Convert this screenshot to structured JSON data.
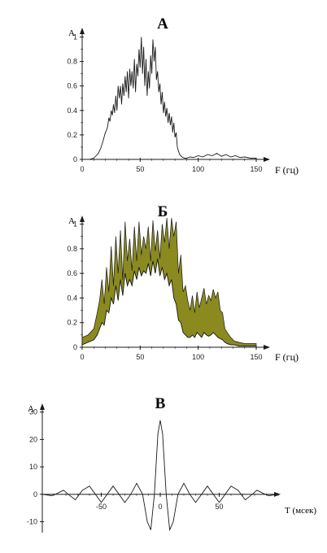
{
  "colors": {
    "ink": "#1a1a1a",
    "spectrum_fill": "#8a8a1f",
    "background": "#ffffff"
  },
  "chart_data": [
    {
      "type": "line",
      "title": "А",
      "ylabel": "А",
      "xlabel": "F (гц)",
      "xlim": [
        0,
        150
      ],
      "ylim": [
        0,
        1.05
      ],
      "xticks": [
        "0",
        "50",
        "100",
        "150"
      ],
      "yticks": [
        "0",
        "0.2",
        "0.4",
        "0.6",
        "0.8",
        "1"
      ],
      "series": [
        {
          "x": [
            0,
            6,
            10,
            12,
            14,
            16,
            18,
            20,
            21,
            22,
            23,
            24,
            25,
            26,
            27,
            28,
            29,
            30,
            31,
            32,
            33,
            34,
            35,
            36,
            37,
            38,
            39,
            40,
            41,
            42,
            43,
            44,
            45,
            46,
            47,
            48,
            49,
            50,
            51,
            52,
            53,
            54,
            55,
            56,
            57,
            58,
            59,
            60,
            61,
            62,
            63,
            64,
            65,
            66,
            67,
            68,
            69,
            70,
            71,
            72,
            73,
            74,
            75,
            76,
            77,
            78,
            79,
            80,
            81,
            82,
            84,
            86,
            88,
            90,
            93,
            96,
            100,
            104,
            108,
            112,
            116,
            120,
            124,
            128,
            132,
            136,
            140,
            145,
            150
          ],
          "y": [
            0,
            0,
            0.01,
            0.03,
            0.05,
            0.09,
            0.15,
            0.22,
            0.24,
            0.27,
            0.34,
            0.31,
            0.4,
            0.36,
            0.45,
            0.38,
            0.52,
            0.4,
            0.6,
            0.5,
            0.6,
            0.45,
            0.62,
            0.52,
            0.68,
            0.55,
            0.72,
            0.5,
            0.74,
            0.6,
            0.72,
            0.58,
            0.82,
            0.55,
            0.78,
            0.68,
            0.9,
            0.75,
            1.0,
            0.7,
            0.92,
            0.6,
            0.82,
            0.52,
            0.72,
            0.58,
            0.85,
            0.7,
            0.98,
            0.8,
            0.92,
            0.65,
            0.72,
            0.55,
            0.62,
            0.45,
            0.55,
            0.38,
            0.47,
            0.35,
            0.42,
            0.3,
            0.38,
            0.28,
            0.35,
            0.22,
            0.3,
            0.18,
            0.22,
            0.1,
            0.04,
            0.02,
            0.01,
            0.01,
            0.02,
            0.015,
            0.03,
            0.02,
            0.04,
            0.03,
            0.05,
            0.025,
            0.04,
            0.02,
            0.03,
            0.015,
            0.02,
            0.01,
            0.01
          ]
        }
      ]
    },
    {
      "type": "area",
      "title": "Б",
      "ylabel": "А",
      "xlabel": "F (гц)",
      "xlim": [
        0,
        150
      ],
      "ylim": [
        0,
        1.05
      ],
      "xticks": [
        "0",
        "50",
        "100",
        "150"
      ],
      "yticks": [
        "0",
        "0.2",
        "0.4",
        "0.6",
        "0.8",
        "1"
      ],
      "series": [
        {
          "x": [
            0,
            5,
            10,
            13,
            15,
            17,
            19,
            21,
            23,
            25,
            27,
            29,
            31,
            33,
            35,
            37,
            39,
            41,
            43,
            45,
            47,
            49,
            51,
            53,
            55,
            57,
            59,
            61,
            63,
            65,
            67,
            69,
            71,
            73,
            75,
            77,
            79,
            81,
            83,
            85,
            87,
            89,
            91,
            93,
            95,
            97,
            99,
            101,
            103,
            105,
            107,
            109,
            111,
            113,
            115,
            117,
            119,
            121,
            123,
            125,
            128,
            131,
            135,
            140,
            150
          ],
          "upper": [
            0.08,
            0.1,
            0.15,
            0.28,
            0.38,
            0.55,
            0.35,
            0.65,
            0.45,
            0.82,
            0.5,
            0.9,
            0.6,
            0.95,
            0.55,
            1.02,
            0.7,
            0.88,
            0.62,
            0.98,
            0.7,
            1.02,
            0.75,
            0.9,
            0.8,
            0.98,
            0.7,
            1.03,
            0.78,
            0.95,
            0.72,
            1.0,
            0.85,
            1.05,
            0.8,
            1.05,
            0.9,
            1.02,
            0.6,
            0.75,
            0.45,
            0.5,
            0.38,
            0.3,
            0.42,
            0.28,
            0.45,
            0.32,
            0.4,
            0.48,
            0.35,
            0.42,
            0.38,
            0.47,
            0.4,
            0.45,
            0.3,
            0.28,
            0.15,
            0.12,
            0.08,
            0.05,
            0.04,
            0.03,
            0.03
          ],
          "lower": [
            0.02,
            0.04,
            0.06,
            0.1,
            0.15,
            0.2,
            0.18,
            0.3,
            0.28,
            0.4,
            0.35,
            0.5,
            0.38,
            0.55,
            0.42,
            0.6,
            0.5,
            0.55,
            0.5,
            0.62,
            0.55,
            0.65,
            0.58,
            0.62,
            0.6,
            0.68,
            0.58,
            0.7,
            0.6,
            0.72,
            0.58,
            0.65,
            0.55,
            0.6,
            0.5,
            0.55,
            0.4,
            0.35,
            0.22,
            0.2,
            0.12,
            0.1,
            0.08,
            0.08,
            0.1,
            0.08,
            0.12,
            0.1,
            0.08,
            0.12,
            0.1,
            0.09,
            0.1,
            0.12,
            0.1,
            0.08,
            0.07,
            0.06,
            0.04,
            0.03,
            0.02,
            0.02,
            0.01,
            0.01,
            0.01
          ]
        }
      ]
    },
    {
      "type": "line",
      "title": "В",
      "ylabel": "А",
      "xlabel": "Т (мсек)",
      "xlim": [
        -100,
        100
      ],
      "ylim": [
        -14,
        32
      ],
      "xticks": [
        "-50",
        "0",
        "50"
      ],
      "yticks": [
        "-10",
        "0",
        "10",
        "20",
        "30"
      ],
      "series": [
        {
          "x": [
            -100,
            -92,
            -88,
            -82,
            -78,
            -72,
            -66,
            -60,
            -55,
            -50,
            -45,
            -40,
            -35,
            -30,
            -25,
            -20,
            -15,
            -11,
            -8,
            -5,
            -2,
            0,
            2,
            5,
            8,
            11,
            15,
            20,
            25,
            30,
            35,
            40,
            45,
            50,
            55,
            60,
            66,
            72,
            78,
            82,
            88,
            92,
            100
          ],
          "y": [
            0,
            -0.5,
            0.2,
            1.5,
            0,
            -2,
            1.5,
            3,
            0,
            -3,
            0,
            3,
            0,
            -3,
            0,
            4,
            0,
            -10,
            -13,
            0,
            22,
            27,
            22,
            0,
            -13,
            -10,
            0,
            4,
            0,
            -3,
            0,
            3,
            0,
            -3,
            0,
            3,
            1.5,
            -2,
            0,
            1.5,
            0.2,
            -0.5,
            0
          ]
        }
      ]
    }
  ]
}
